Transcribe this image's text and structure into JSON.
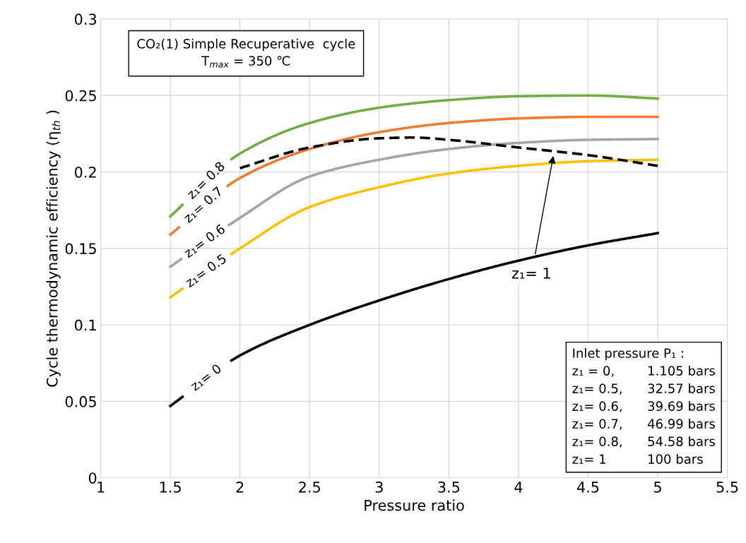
{
  "chart_data": {
    "type": "line",
    "title": "CO₂(1) Simple Recuperative  cycle",
    "subtitle": "T$_{max}$ = 350 ℃",
    "xlabel": "Pressure ratio",
    "ylabel": "Cycle thermodynamic efficiency (η$_{th}$ )",
    "x": [
      1.5,
      2,
      2.5,
      3,
      3.5,
      4,
      4.5,
      5
    ],
    "series": [
      {
        "name": "z₁= 0.8",
        "color": "#70ad47",
        "values": [
          0.171,
          0.212,
          0.232,
          0.242,
          0.247,
          0.2495,
          0.25,
          0.248
        ]
      },
      {
        "name": "z₁= 0.7",
        "color": "#ed7d31",
        "values": [
          0.159,
          0.196,
          0.215,
          0.226,
          0.232,
          0.235,
          0.236,
          0.236
        ]
      },
      {
        "name": "z₁= 0.6",
        "color": "#a5a5a5",
        "values": [
          0.138,
          0.17,
          0.197,
          0.208,
          0.215,
          0.219,
          0.221,
          0.2215
        ]
      },
      {
        "name": "z₁= 0.5",
        "color": "#ffc000",
        "values": [
          0.118,
          0.15,
          0.177,
          0.19,
          0.199,
          0.204,
          0.207,
          0.208
        ]
      },
      {
        "name": "z₁= 1",
        "color": "#000000",
        "line_style": "dashed",
        "x": [
          2,
          2.5,
          3,
          3.25,
          3.5,
          4,
          4.5,
          5
        ],
        "values": [
          0.2025,
          0.216,
          0.222,
          0.2225,
          0.221,
          0.216,
          0.211,
          0.204
        ]
      },
      {
        "name": "z₁= 0",
        "color": "#000000",
        "values": [
          0.047,
          0.08,
          0.1,
          0.116,
          0.13,
          0.142,
          0.152,
          0.16
        ]
      }
    ],
    "xlim": [
      1,
      5.5
    ],
    "xticks": [
      1,
      1.5,
      2,
      2.5,
      3,
      3.5,
      4,
      4.5,
      5,
      5.5
    ],
    "ylim": [
      0,
      0.3
    ],
    "yticks": [
      0,
      0.05,
      0.1,
      0.15,
      0.2,
      0.25,
      0.3
    ],
    "grid": true,
    "annotations": [
      "Inlet pressure P₁ :\nz₁ = 0,        1.105 bars\nz₁= 0.5,      32.57 bars\nz₁= 0.6,      39.69 bars\nz₁= 0.7,      46.99 bars\nz₁= 0.8,      54.58 bars\nz₁= 1          100 bars"
    ]
  }
}
